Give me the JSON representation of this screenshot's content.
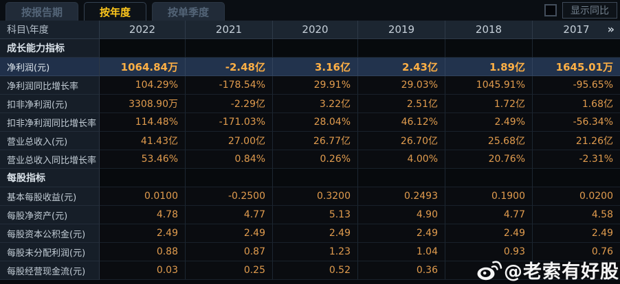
{
  "tabs": [
    {
      "label": "按报告期",
      "active": false
    },
    {
      "label": "按年度",
      "active": true
    },
    {
      "label": "按单季度",
      "active": false
    }
  ],
  "controls": {
    "show_yoy_label": "显示同比",
    "yoy_checked": false
  },
  "table": {
    "corner_label": "科目\\年度",
    "years": [
      "2022",
      "2021",
      "2020",
      "2019",
      "2018",
      "2017"
    ],
    "more_icon": "»",
    "rows": [
      {
        "type": "section",
        "label": "成长能力指标",
        "values": [
          "",
          "",
          "",
          "",
          "",
          ""
        ]
      },
      {
        "type": "data",
        "label": "净利润(元)",
        "highlight": true,
        "values": [
          "1064.84万",
          "-2.48亿",
          "3.16亿",
          "2.43亿",
          "1.89亿",
          "1645.01万"
        ]
      },
      {
        "type": "data",
        "label": "净利润同比增长率",
        "values": [
          "104.29%",
          "-178.54%",
          "29.91%",
          "29.03%",
          "1045.91%",
          "-95.65%"
        ]
      },
      {
        "type": "data",
        "label": "扣非净利润(元)",
        "values": [
          "3308.90万",
          "-2.29亿",
          "3.22亿",
          "2.51亿",
          "1.72亿",
          "1.68亿"
        ]
      },
      {
        "type": "data",
        "label": "扣非净利润同比增长率",
        "values": [
          "114.48%",
          "-171.03%",
          "28.04%",
          "46.12%",
          "2.49%",
          "-56.34%"
        ]
      },
      {
        "type": "data",
        "label": "营业总收入(元)",
        "values": [
          "41.43亿",
          "27.00亿",
          "26.77亿",
          "26.70亿",
          "25.68亿",
          "21.26亿"
        ]
      },
      {
        "type": "data",
        "label": "营业总收入同比增长率",
        "values": [
          "53.46%",
          "0.84%",
          "0.26%",
          "4.00%",
          "20.76%",
          "-2.31%"
        ]
      },
      {
        "type": "section",
        "label": "每股指标",
        "values": [
          "",
          "",
          "",
          "",
          "",
          ""
        ]
      },
      {
        "type": "data",
        "label": "基本每股收益(元)",
        "values": [
          "0.0100",
          "-0.2500",
          "0.3200",
          "0.2493",
          "0.1900",
          "0.0200"
        ]
      },
      {
        "type": "data",
        "label": "每股净资产(元)",
        "values": [
          "4.78",
          "4.77",
          "5.13",
          "4.90",
          "4.77",
          "4.58"
        ]
      },
      {
        "type": "data",
        "label": "每股资本公积金(元)",
        "values": [
          "2.49",
          "2.49",
          "2.49",
          "2.49",
          "2.49",
          "2.49"
        ]
      },
      {
        "type": "data",
        "label": "每股未分配利润(元)",
        "values": [
          "0.88",
          "0.87",
          "1.23",
          "1.04",
          "0.93",
          "0.76"
        ]
      },
      {
        "type": "data",
        "label": "每股经营现金流(元)",
        "values": [
          "0.03",
          "0.25",
          "0.52",
          "0.36",
          "",
          ""
        ]
      }
    ]
  },
  "watermark": {
    "text": "@老索有好股",
    "icon": "weibo-icon"
  },
  "colors": {
    "value_text": "#e19c4e",
    "value_bold_text": "#ffb045",
    "tab_active_text": "#ffc71c",
    "highlight_row_bg": "#22334d",
    "header_bg": "#1c2631",
    "watermark_text": "#ffffff"
  }
}
